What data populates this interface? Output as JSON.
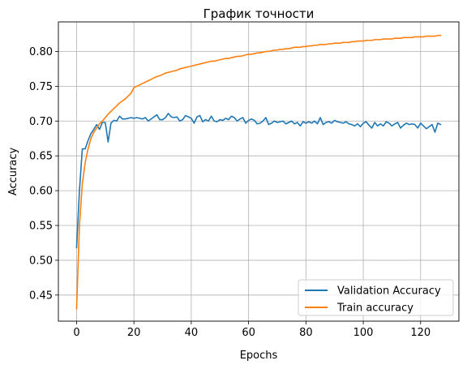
{
  "chart_data": {
    "type": "line",
    "title": "График точности",
    "xlabel": "Epochs",
    "ylabel": "Accuracy",
    "xlim": [
      -6.35,
      133.35
    ],
    "ylim": [
      0.4125,
      0.8425
    ],
    "grid": true,
    "legend_position": "bottom-right",
    "x_ticks": [
      0,
      20,
      40,
      60,
      80,
      100,
      120
    ],
    "y_ticks": [
      0.45,
      0.5,
      0.55,
      0.6,
      0.65,
      0.7,
      0.75,
      0.8
    ],
    "x": [
      0,
      1,
      2,
      3,
      4,
      5,
      6,
      7,
      8,
      9,
      10,
      11,
      12,
      13,
      14,
      15,
      16,
      17,
      18,
      19,
      20,
      21,
      22,
      23,
      24,
      25,
      26,
      27,
      28,
      29,
      30,
      31,
      32,
      33,
      34,
      35,
      36,
      37,
      38,
      39,
      40,
      41,
      42,
      43,
      44,
      45,
      46,
      47,
      48,
      49,
      50,
      51,
      52,
      53,
      54,
      55,
      56,
      57,
      58,
      59,
      60,
      61,
      62,
      63,
      64,
      65,
      66,
      67,
      68,
      69,
      70,
      71,
      72,
      73,
      74,
      75,
      76,
      77,
      78,
      79,
      80,
      81,
      82,
      83,
      84,
      85,
      86,
      87,
      88,
      89,
      90,
      91,
      92,
      93,
      94,
      95,
      96,
      97,
      98,
      99,
      100,
      101,
      102,
      103,
      104,
      105,
      106,
      107,
      108,
      109,
      110,
      111,
      112,
      113,
      114,
      115,
      116,
      117,
      118,
      119,
      120,
      121,
      122,
      123,
      124,
      125,
      126,
      127
    ],
    "series": [
      {
        "name": "Validation Accuracy",
        "color": "#1f77b4",
        "values": [
          0.518,
          0.6,
          0.66,
          0.66,
          0.672,
          0.682,
          0.688,
          0.695,
          0.688,
          0.698,
          0.698,
          0.67,
          0.697,
          0.701,
          0.7,
          0.707,
          0.703,
          0.703,
          0.704,
          0.705,
          0.704,
          0.705,
          0.704,
          0.703,
          0.705,
          0.7,
          0.703,
          0.706,
          0.709,
          0.702,
          0.702,
          0.705,
          0.711,
          0.706,
          0.705,
          0.706,
          0.7,
          0.702,
          0.708,
          0.706,
          0.704,
          0.697,
          0.706,
          0.708,
          0.699,
          0.702,
          0.7,
          0.707,
          0.7,
          0.699,
          0.702,
          0.701,
          0.704,
          0.702,
          0.707,
          0.705,
          0.7,
          0.703,
          0.705,
          0.697,
          0.701,
          0.703,
          0.701,
          0.696,
          0.697,
          0.7,
          0.705,
          0.695,
          0.697,
          0.7,
          0.698,
          0.699,
          0.7,
          0.696,
          0.698,
          0.7,
          0.696,
          0.698,
          0.693,
          0.699,
          0.697,
          0.699,
          0.697,
          0.7,
          0.696,
          0.705,
          0.695,
          0.698,
          0.699,
          0.697,
          0.701,
          0.699,
          0.698,
          0.697,
          0.699,
          0.696,
          0.695,
          0.693,
          0.696,
          0.692,
          0.697,
          0.699,
          0.694,
          0.69,
          0.698,
          0.693,
          0.696,
          0.693,
          0.699,
          0.697,
          0.693,
          0.696,
          0.698,
          0.69,
          0.694,
          0.697,
          0.695,
          0.696,
          0.695,
          0.69,
          0.697,
          0.693,
          0.689,
          0.692,
          0.695,
          0.684,
          0.697,
          0.695
        ]
      },
      {
        "name": "Train accuracy",
        "color": "#ff7f0e",
        "values": [
          0.43,
          0.55,
          0.61,
          0.64,
          0.66,
          0.675,
          0.684,
          0.69,
          0.696,
          0.7,
          0.705,
          0.71,
          0.714,
          0.718,
          0.722,
          0.726,
          0.729,
          0.732,
          0.736,
          0.74,
          0.748,
          0.75,
          0.752,
          0.754,
          0.756,
          0.758,
          0.76,
          0.762,
          0.764,
          0.765,
          0.767,
          0.769,
          0.77,
          0.771,
          0.772,
          0.773,
          0.775,
          0.776,
          0.777,
          0.778,
          0.779,
          0.78,
          0.781,
          0.782,
          0.783,
          0.784,
          0.785,
          0.786,
          0.786,
          0.787,
          0.788,
          0.789,
          0.79,
          0.79,
          0.791,
          0.792,
          0.793,
          0.793,
          0.794,
          0.795,
          0.796,
          0.796,
          0.797,
          0.798,
          0.798,
          0.799,
          0.8,
          0.8,
          0.801,
          0.802,
          0.802,
          0.803,
          0.803,
          0.804,
          0.804,
          0.805,
          0.806,
          0.806,
          0.806,
          0.807,
          0.807,
          0.808,
          0.808,
          0.809,
          0.809,
          0.81,
          0.81,
          0.81,
          0.811,
          0.811,
          0.812,
          0.812,
          0.812,
          0.813,
          0.813,
          0.813,
          0.814,
          0.814,
          0.815,
          0.815,
          0.815,
          0.816,
          0.816,
          0.816,
          0.817,
          0.817,
          0.817,
          0.818,
          0.818,
          0.818,
          0.818,
          0.819,
          0.819,
          0.819,
          0.82,
          0.82,
          0.82,
          0.82,
          0.821,
          0.821,
          0.821,
          0.821,
          0.822,
          0.822,
          0.822,
          0.822,
          0.823,
          0.823
        ]
      }
    ]
  }
}
